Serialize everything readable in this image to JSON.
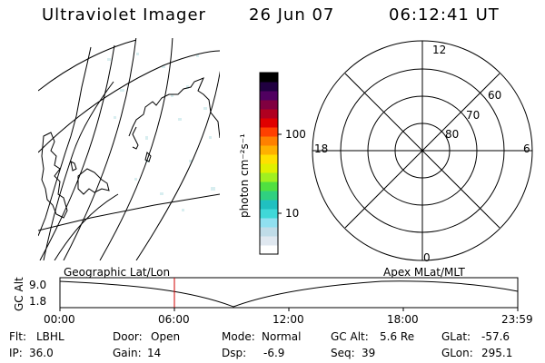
{
  "header": {
    "instrument": "Ultraviolet Imager",
    "date": "26 Jun 07",
    "time": "06:12:41 UT"
  },
  "colorbar": {
    "unit_label": "photon cm⁻²s⁻¹",
    "ticks": [
      "100",
      "10"
    ],
    "colors": [
      "#fff",
      "#e0e8f0",
      "#c0dce8",
      "#90e0f0",
      "#40d8d8",
      "#20c0c0",
      "#30d080",
      "#50e040",
      "#a0f020",
      "#e0f000",
      "#ffe000",
      "#ffb000",
      "#ff8000",
      "#ff4000",
      "#e00000",
      "#b00020",
      "#800040",
      "#500060",
      "#200040",
      "#000000"
    ]
  },
  "polar_plot": {
    "mlt_labels": {
      "top": "12",
      "left": "18",
      "right": "6",
      "bottom": "0"
    },
    "lat_labels": [
      "60",
      "70",
      "80"
    ]
  },
  "timeline": {
    "left_label": "Geographic Lat/Lon",
    "right_label": "Apex MLat/MLT",
    "y_axis_label": "GC Alt",
    "y_ticks": [
      "9.0",
      "1.8"
    ],
    "x_ticks": [
      "00:00",
      "06:00",
      "12:00",
      "18:00",
      "23:59"
    ],
    "current_marker_color": "#d00000"
  },
  "status": {
    "filter_label": "Flt:",
    "filter_value": "LBHL",
    "door_label": "Door:",
    "door_value": "Open",
    "mode_label": "Mode:",
    "mode_value": "Normal",
    "gcalt_label": "GC Alt:",
    "gcalt_value": "5.6 Re",
    "glat_label": "GLat:",
    "glat_value": "-57.6",
    "ip_label": "IP:",
    "ip_value": "36.0",
    "gain_label": "Gain:",
    "gain_value": "14",
    "dsp_label": "Dsp:",
    "dsp_value": "-6.9",
    "seq_label": "Seq:",
    "seq_value": "39",
    "glon_label": "GLon:",
    "glon_value": "295.1"
  }
}
